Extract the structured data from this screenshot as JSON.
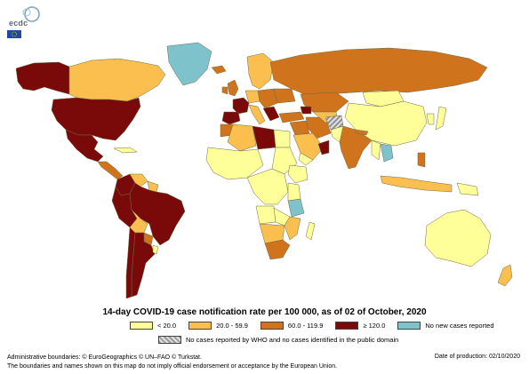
{
  "logo": {
    "text": "ecdc"
  },
  "legend": {
    "title": "14-day COVID-19 case notification rate per 100 000, as of 02 of October, 2020",
    "items": [
      {
        "label": "< 20.0",
        "color": "#ffff99"
      },
      {
        "label": "20.0 - 59.9",
        "color": "#fbbf4f"
      },
      {
        "label": "60.0 - 119.9",
        "color": "#d0731d"
      },
      {
        "label": "≥ 120.0",
        "color": "#7a0a0a"
      },
      {
        "label": "No new cases reported",
        "color": "#7ec2cb"
      }
    ],
    "hatch_label": "No cases reported by WHO and no cases identified in the public domain"
  },
  "footer": {
    "line1": "Administrative boundaries: © EuroGeographics © UN–FAO © Turkstat.",
    "line2": "The boundaries and names shown on this map do not imply official endorsement or acceptance by the European Union.",
    "date": "Date of production: 02/10/2020"
  }
}
